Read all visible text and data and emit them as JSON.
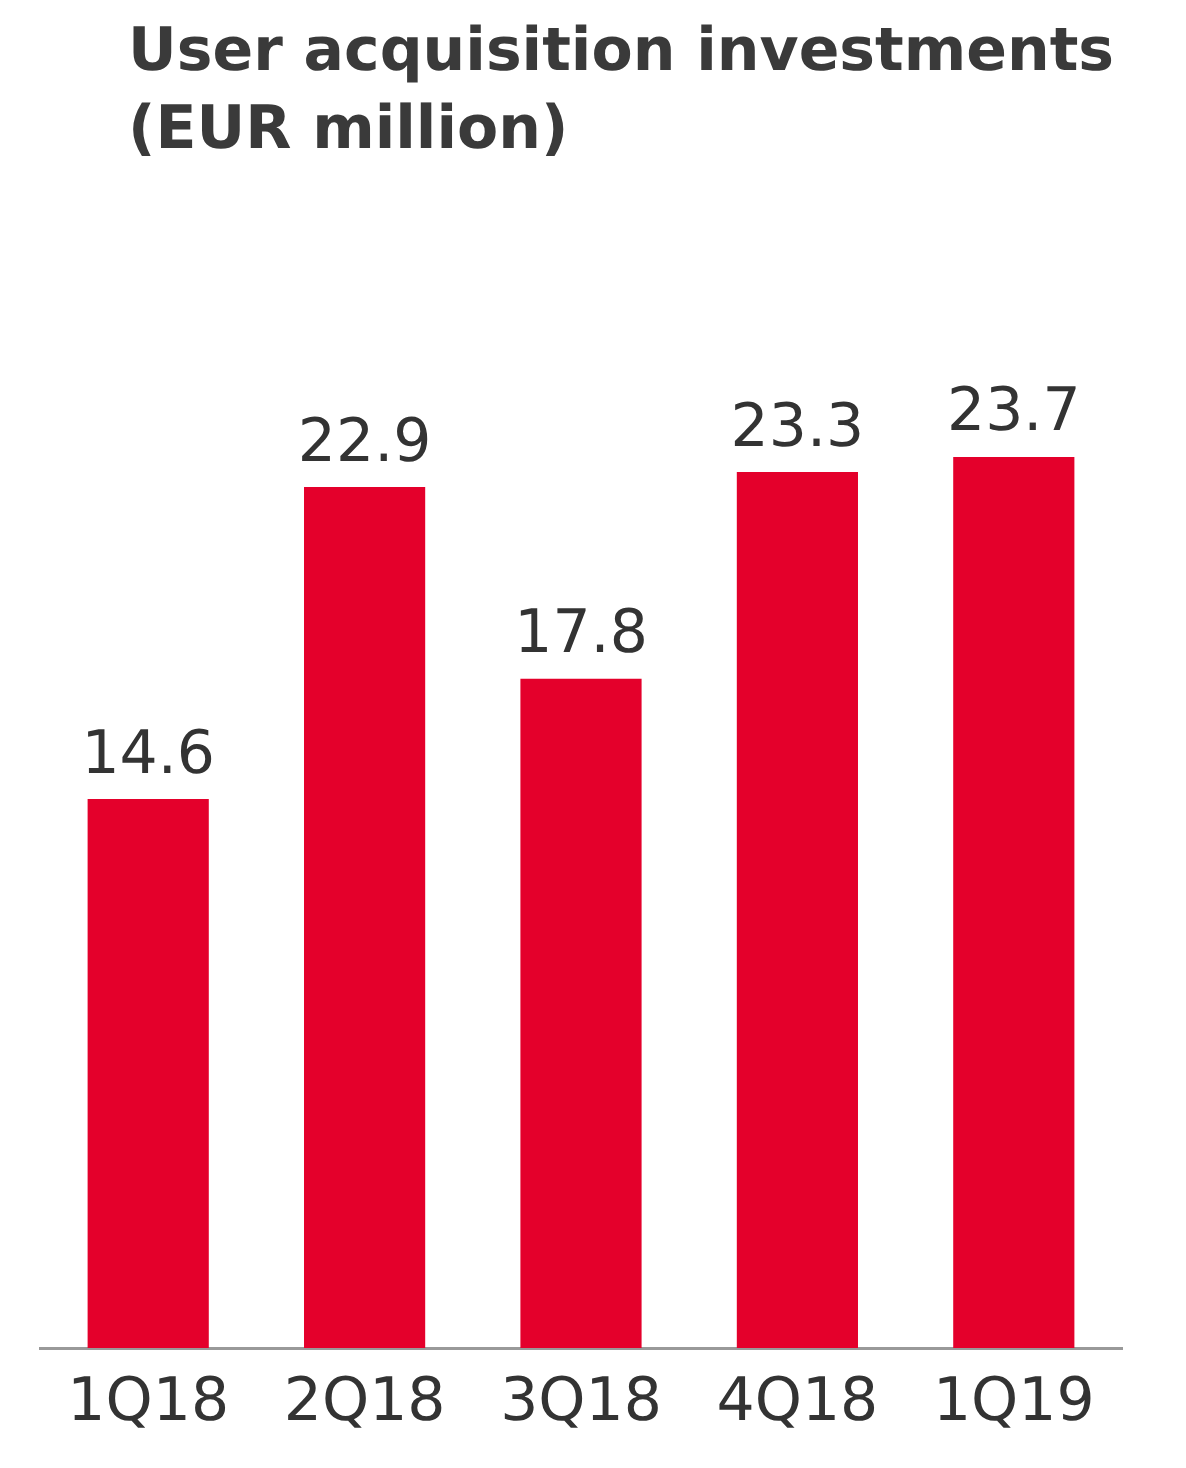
{
  "chart_data": {
    "type": "bar",
    "title": "User acquisition investments (EUR million)",
    "categories": [
      "1Q18",
      "2Q18",
      "3Q18",
      "4Q18",
      "1Q19"
    ],
    "values": [
      14.6,
      22.9,
      17.8,
      23.3,
      23.7
    ],
    "color": "#e4002b",
    "data_labels": true,
    "grid": false,
    "legend": false
  }
}
